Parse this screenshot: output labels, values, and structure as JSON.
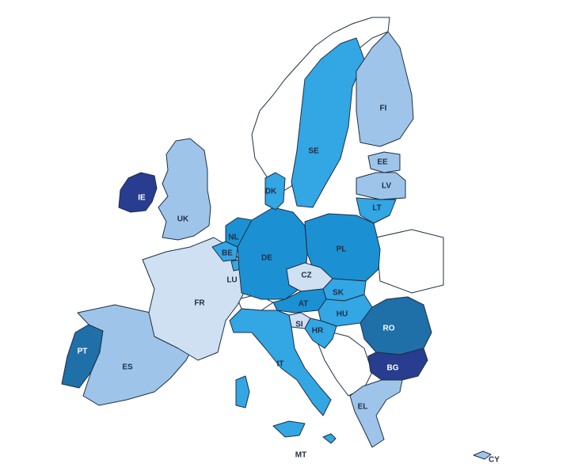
{
  "colors": {
    "lightest": "#cfe0f2",
    "light": "#9ec5e9",
    "medium": "#33a6e4",
    "strong": "#1b91d3",
    "dark": "#1f6fa9",
    "darkest": "#283d8f",
    "border": "#1f2f45",
    "label_dark": "#1f2f45",
    "label_light": "#ffffff"
  },
  "countries": [
    {
      "code": "IE",
      "label": "IE",
      "class": "darkest"
    },
    {
      "code": "UK",
      "label": "UK",
      "class": "light"
    },
    {
      "code": "PT",
      "label": "PT",
      "class": "dark"
    },
    {
      "code": "ES",
      "label": "ES",
      "class": "light"
    },
    {
      "code": "FR",
      "label": "FR",
      "class": "lightest"
    },
    {
      "code": "BE",
      "label": "BE",
      "class": "medium"
    },
    {
      "code": "NL",
      "label": "NL",
      "class": "strong"
    },
    {
      "code": "LU",
      "label": "LU",
      "class": "medium"
    },
    {
      "code": "DE",
      "label": "DE",
      "class": "strong"
    },
    {
      "code": "DK",
      "label": "DK",
      "class": "medium"
    },
    {
      "code": "SE",
      "label": "SE",
      "class": "medium"
    },
    {
      "code": "FI",
      "label": "FI",
      "class": "light"
    },
    {
      "code": "EE",
      "label": "EE",
      "class": "light"
    },
    {
      "code": "LV",
      "label": "LV",
      "class": "light"
    },
    {
      "code": "LT",
      "label": "LT",
      "class": "medium"
    },
    {
      "code": "PL",
      "label": "PL",
      "class": "strong"
    },
    {
      "code": "CZ",
      "label": "CZ",
      "class": "lightest"
    },
    {
      "code": "SK",
      "label": "SK",
      "class": "medium"
    },
    {
      "code": "AT",
      "label": "AT",
      "class": "strong"
    },
    {
      "code": "HU",
      "label": "HU",
      "class": "medium"
    },
    {
      "code": "SI",
      "label": "SI",
      "class": "lightest"
    },
    {
      "code": "HR",
      "label": "HR",
      "class": "medium"
    },
    {
      "code": "IT",
      "label": "IT",
      "class": "medium"
    },
    {
      "code": "RO",
      "label": "RO",
      "class": "dark"
    },
    {
      "code": "BG",
      "label": "BG",
      "class": "darkest"
    },
    {
      "code": "EL",
      "label": "EL",
      "class": "light"
    },
    {
      "code": "MT",
      "label": "MT",
      "class": "medium"
    },
    {
      "code": "CY",
      "label": "CY",
      "class": "light"
    }
  ]
}
